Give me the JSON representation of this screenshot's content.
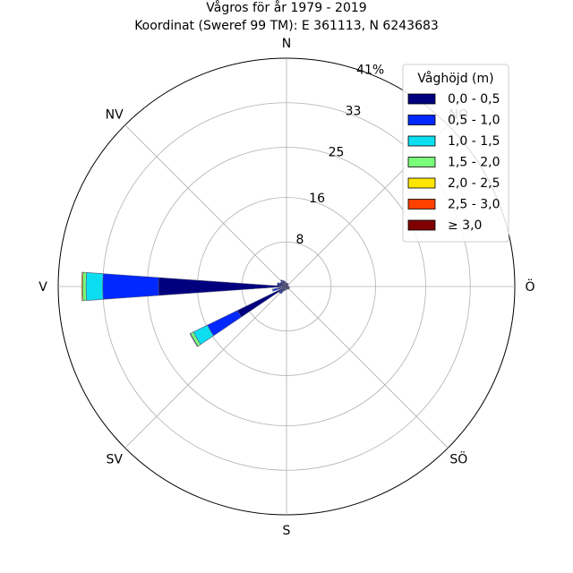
{
  "chart_data": {
    "type": "wind-rose",
    "title_line1": "Vågros för år 1979 - 2019",
    "title_line2": "Koordinat (Sweref 99 TM): E 361113, N 6243683",
    "radial_max": 41,
    "radial_ticks": [
      {
        "value": 8,
        "label": "8"
      },
      {
        "value": 16,
        "label": "16"
      },
      {
        "value": 25,
        "label": "25"
      },
      {
        "value": 33,
        "label": "33"
      },
      {
        "value": 41,
        "label": "41%"
      }
    ],
    "directions": [
      {
        "label": "N",
        "angle": 0
      },
      {
        "label": "NV",
        "angle": 315
      },
      {
        "label": "V",
        "angle": 270
      },
      {
        "label": "SV",
        "angle": 225
      },
      {
        "label": "S",
        "angle": 180
      },
      {
        "label": "SÖ",
        "angle": 135
      },
      {
        "label": "Ö",
        "angle": 90
      },
      {
        "label": "NO",
        "angle": 45
      }
    ],
    "legend": {
      "title": "Våghöjd (m)",
      "placement": "top-right",
      "entries": [
        {
          "label": "0,0 - 0,5",
          "color": "#00007f"
        },
        {
          "label": "0,5 - 1,0",
          "color": "#0028ff"
        },
        {
          "label": "1,0 - 1,5",
          "color": "#0dddf0"
        },
        {
          "label": "1,5 - 2,0",
          "color": "#7aff7a"
        },
        {
          "label": "2,0 - 2,5",
          "color": "#ffe500"
        },
        {
          "label": "2,5 - 3,0",
          "color": "#ff4000"
        },
        {
          "label": "≥ 3,0",
          "color": "#7f0000"
        }
      ]
    },
    "sector_width_deg": 8,
    "sectors": [
      {
        "direction": 270,
        "values": [
          23.0,
          10.0,
          3.0,
          0.6,
          0.2,
          0,
          0
        ]
      },
      {
        "direction": 240,
        "values": [
          9.8,
          6.0,
          2.8,
          0.6,
          0.1,
          0,
          0
        ]
      },
      {
        "direction": 255,
        "values": [
          1.6,
          0.8,
          0.2,
          0,
          0,
          0,
          0
        ]
      },
      {
        "direction": 230,
        "values": [
          1.2,
          0.4,
          0.1,
          0,
          0,
          0,
          0
        ]
      },
      {
        "direction": 220,
        "values": [
          1.1,
          0.4,
          0.1,
          0,
          0,
          0,
          0
        ]
      },
      {
        "direction": 210,
        "values": [
          0.7,
          0.2,
          0,
          0,
          0,
          0,
          0
        ]
      },
      {
        "direction": 200,
        "values": [
          0.6,
          0.1,
          0,
          0,
          0,
          0,
          0
        ]
      },
      {
        "direction": 190,
        "values": [
          0.5,
          0.1,
          0,
          0,
          0,
          0,
          0
        ]
      },
      {
        "direction": 180,
        "values": [
          0.4,
          0.1,
          0,
          0,
          0,
          0,
          0
        ]
      },
      {
        "direction": 170,
        "values": [
          0.4,
          0.1,
          0,
          0,
          0,
          0,
          0
        ]
      },
      {
        "direction": 160,
        "values": [
          0.4,
          0.1,
          0,
          0,
          0,
          0,
          0
        ]
      },
      {
        "direction": 150,
        "values": [
          0.4,
          0.1,
          0,
          0,
          0,
          0,
          0
        ]
      },
      {
        "direction": 140,
        "values": [
          0.5,
          0.1,
          0,
          0,
          0,
          0,
          0
        ]
      },
      {
        "direction": 130,
        "values": [
          0.5,
          0.1,
          0,
          0,
          0,
          0,
          0
        ]
      },
      {
        "direction": 120,
        "values": [
          0.5,
          0.1,
          0,
          0,
          0,
          0,
          0
        ]
      },
      {
        "direction": 110,
        "values": [
          0.4,
          0.1,
          0,
          0,
          0,
          0,
          0
        ]
      },
      {
        "direction": 100,
        "values": [
          0.4,
          0.1,
          0,
          0,
          0,
          0,
          0
        ]
      },
      {
        "direction": 90,
        "values": [
          0.3,
          0.1,
          0,
          0,
          0,
          0,
          0
        ]
      },
      {
        "direction": 80,
        "values": [
          0.3,
          0,
          0,
          0,
          0,
          0,
          0
        ]
      },
      {
        "direction": 70,
        "values": [
          0.3,
          0,
          0,
          0,
          0,
          0,
          0
        ]
      },
      {
        "direction": 60,
        "values": [
          0.3,
          0,
          0,
          0,
          0,
          0,
          0
        ]
      },
      {
        "direction": 50,
        "values": [
          0.3,
          0,
          0,
          0,
          0,
          0,
          0
        ]
      },
      {
        "direction": 40,
        "values": [
          0.4,
          0,
          0,
          0,
          0,
          0,
          0
        ]
      },
      {
        "direction": 30,
        "values": [
          0.5,
          0.1,
          0,
          0,
          0,
          0,
          0
        ]
      },
      {
        "direction": 20,
        "values": [
          0.4,
          0.1,
          0,
          0,
          0,
          0,
          0
        ]
      },
      {
        "direction": 10,
        "values": [
          0.5,
          0.1,
          0,
          0,
          0,
          0,
          0
        ]
      },
      {
        "direction": 0,
        "values": [
          0.5,
          0.1,
          0,
          0,
          0,
          0,
          0
        ]
      },
      {
        "direction": 350,
        "values": [
          0.6,
          0.1,
          0,
          0,
          0,
          0,
          0
        ]
      },
      {
        "direction": 340,
        "values": [
          0.8,
          0.2,
          0,
          0,
          0,
          0,
          0
        ]
      },
      {
        "direction": 330,
        "values": [
          1.0,
          0.2,
          0,
          0,
          0,
          0,
          0
        ]
      },
      {
        "direction": 320,
        "values": [
          1.2,
          0.3,
          0,
          0,
          0,
          0,
          0
        ]
      },
      {
        "direction": 310,
        "values": [
          1.0,
          0.2,
          0,
          0,
          0,
          0,
          0
        ]
      },
      {
        "direction": 300,
        "values": [
          1.1,
          0.2,
          0,
          0,
          0,
          0,
          0
        ]
      },
      {
        "direction": 290,
        "values": [
          1.4,
          0.3,
          0,
          0,
          0,
          0,
          0
        ]
      },
      {
        "direction": 280,
        "values": [
          1.4,
          0.3,
          0,
          0,
          0,
          0,
          0
        ]
      }
    ]
  }
}
